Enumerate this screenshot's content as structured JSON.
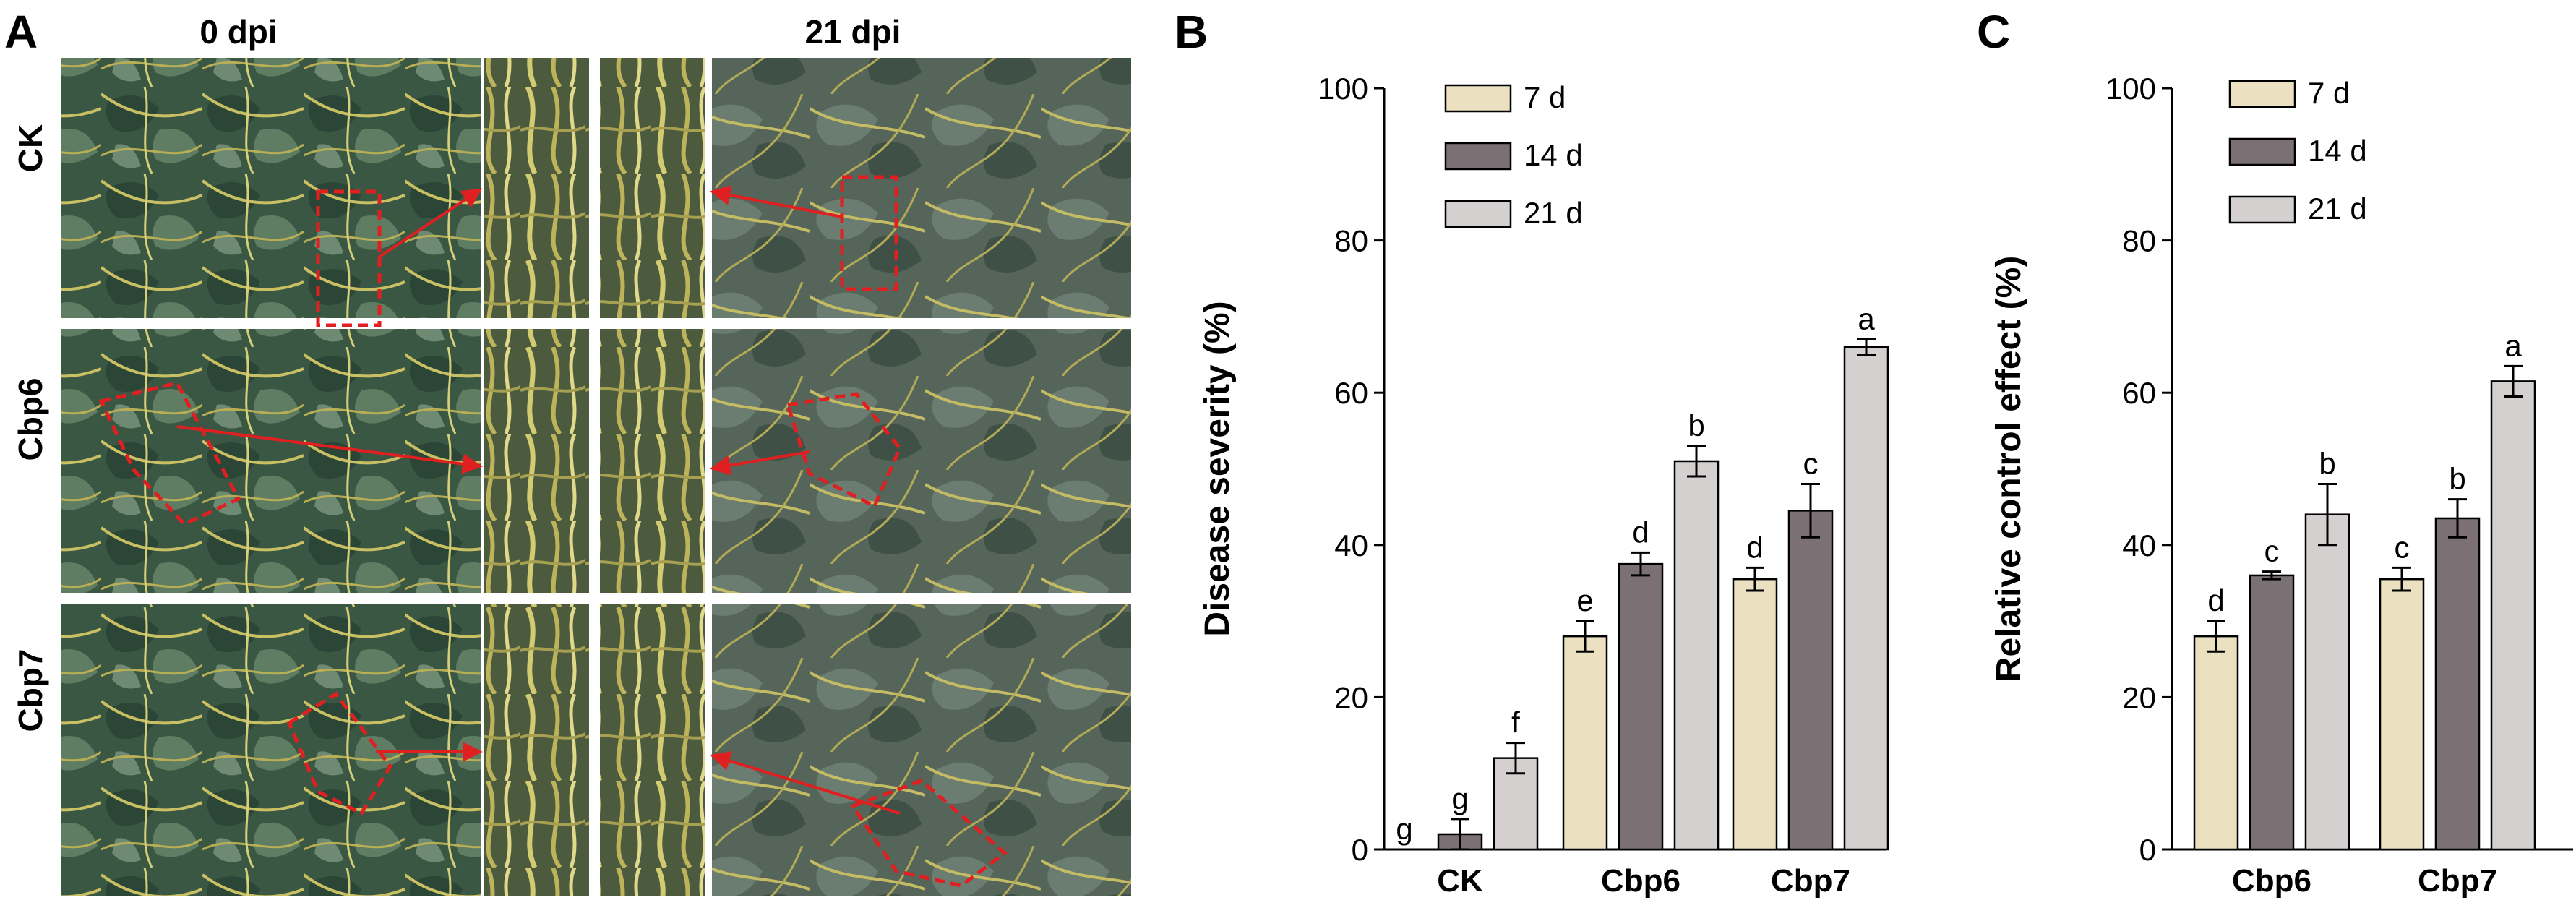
{
  "panel_a": {
    "letter": "A",
    "col_left": "0 dpi",
    "col_right": "21 dpi",
    "rows": [
      "CK",
      "Cbp6",
      "Cbp7"
    ]
  },
  "legend": {
    "items": [
      "7 d",
      "14 d",
      "21 d"
    ]
  },
  "colors": {
    "d7": "#EBE1C0",
    "d14": "#7B7074",
    "d21": "#D4D0D0",
    "arrow": "#E02020",
    "leaf_dark": "#2C4A38",
    "leaf_mid": "#4F6E55",
    "vine": "#C8C060"
  },
  "chart_data": [
    {
      "type": "bar",
      "panel": "B",
      "ylabel": "Disease severity (%)",
      "ylim": [
        0,
        100
      ],
      "yticks": [
        0,
        20,
        40,
        60,
        80,
        100
      ],
      "categories": [
        "CK",
        "Cbp6",
        "Cbp7"
      ],
      "legend_position": "top-left",
      "series": [
        {
          "name": "7 d",
          "values": [
            0,
            28,
            35.5
          ],
          "errors": [
            0,
            2,
            1.5
          ],
          "letters": [
            "g",
            "e",
            "d"
          ]
        },
        {
          "name": "14 d",
          "values": [
            2,
            37.5,
            44.5
          ],
          "errors": [
            2,
            1.5,
            3.5
          ],
          "letters": [
            "g",
            "d",
            "c"
          ]
        },
        {
          "name": "21 d",
          "values": [
            12,
            51,
            66
          ],
          "errors": [
            2,
            2,
            1
          ],
          "letters": [
            "f",
            "b",
            "a"
          ]
        }
      ]
    },
    {
      "type": "bar",
      "panel": "C",
      "ylabel": "Relative control effect (%)",
      "ylim": [
        0,
        100
      ],
      "yticks": [
        0,
        20,
        40,
        60,
        80,
        100
      ],
      "categories": [
        "Cbp6",
        "Cbp7"
      ],
      "legend_position": "top-left",
      "series": [
        {
          "name": "7 d",
          "values": [
            28,
            35.5
          ],
          "errors": [
            2,
            1.5
          ],
          "letters": [
            "d",
            "c"
          ]
        },
        {
          "name": "14 d",
          "values": [
            36,
            43.5
          ],
          "errors": [
            0.5,
            2.5
          ],
          "letters": [
            "c",
            "b"
          ]
        },
        {
          "name": "21 d",
          "values": [
            44,
            61.5
          ],
          "errors": [
            4,
            2
          ],
          "letters": [
            "b",
            "a"
          ]
        }
      ]
    }
  ]
}
